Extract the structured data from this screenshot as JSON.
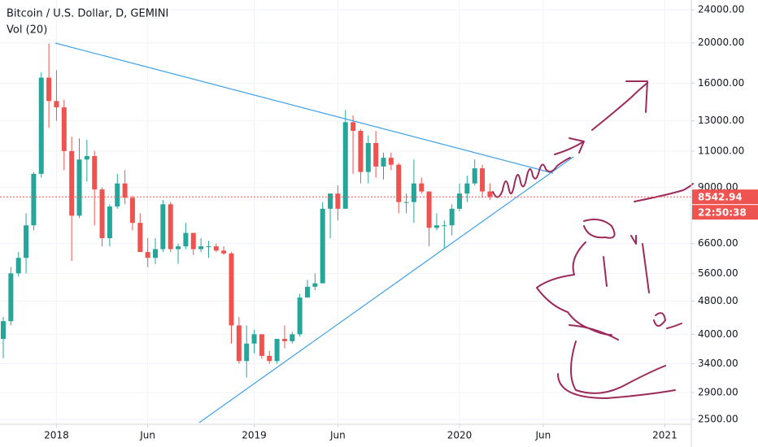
{
  "chart_data": {
    "type": "candlestick",
    "title": "Bitcoin / U.S. Dollar, D, GEMINI",
    "subtitle": "Vol (20)",
    "countdown": "22:50:38",
    "log_scale": true,
    "grid": true,
    "up_color": "#26a69a",
    "down_color": "#ef5350",
    "categories": [
      null,
      null,
      null,
      null,
      null,
      null,
      null,
      "2018",
      null,
      null,
      null,
      null,
      null,
      null,
      null,
      null,
      null,
      null,
      null,
      "Jun",
      null,
      null,
      null,
      null,
      null,
      null,
      null,
      null,
      null,
      null,
      null,
      null,
      null,
      "2019",
      null,
      null,
      null,
      null,
      null,
      null,
      null,
      null,
      null,
      null,
      "Jun",
      null,
      null,
      null,
      null,
      null,
      null,
      null,
      null,
      null,
      null,
      null,
      null,
      null,
      null,
      null,
      "2020",
      null,
      null,
      null,
      null,
      null,
      null,
      null,
      null,
      null,
      null,
      "Jun",
      null,
      null,
      null,
      null,
      null,
      null,
      null,
      null,
      null,
      null,
      null,
      null,
      null,
      null,
      null,
      "2021",
      null,
      null,
      null
    ],
    "open": [
      3900,
      4300,
      5600,
      6100,
      7300,
      9700,
      16500,
      14500,
      14000,
      11000,
      7700,
      10500,
      10700,
      8900,
      6800,
      8100,
      9200,
      8500,
      7400,
      6300,
      6100,
      6400,
      8200,
      6400,
      6500,
      7000,
      6400,
      6500,
      6500,
      6350,
      6250,
      4200,
      3450,
      3800,
      4000,
      3550,
      3450,
      3900,
      3850,
      4000,
      4900,
      5200,
      5300,
      8000,
      8700,
      8000,
      12900,
      12300,
      9800,
      11500,
      10100,
      10600,
      10200,
      8300,
      8300,
      9200,
      8800,
      7200,
      7300,
      7300,
      8000,
      8700,
      9200,
      10000,
      8800,
      null,
      null,
      null,
      null,
      null,
      null,
      null,
      null,
      null,
      null,
      null,
      null,
      null,
      null,
      null,
      null,
      null,
      null,
      null,
      null,
      null,
      null,
      null,
      null,
      null,
      null
    ],
    "high": [
      4400,
      5800,
      6300,
      7800,
      9800,
      17000,
      19900,
      17200,
      14600,
      11900,
      11800,
      11700,
      11000,
      9000,
      8200,
      9700,
      9900,
      8600,
      7800,
      6800,
      6800,
      8400,
      8300,
      6600,
      7400,
      7000,
      6800,
      6700,
      6600,
      6500,
      6300,
      4400,
      4200,
      4100,
      4000,
      3650,
      3900,
      4200,
      4050,
      5000,
      5400,
      5600,
      8300,
      8700,
      9100,
      13800,
      13400,
      12400,
      12000,
      12300,
      10900,
      10900,
      10300,
      8700,
      10500,
      9500,
      8800,
      7800,
      7500,
      8200,
      9200,
      9600,
      10500,
      10200,
      9200,
      null,
      null,
      null,
      null,
      null,
      null,
      null,
      null,
      null,
      null,
      null,
      null,
      null,
      null,
      null,
      null,
      null,
      null,
      null,
      null,
      null,
      null,
      null,
      null,
      null,
      null
    ],
    "low": [
      3500,
      4200,
      5500,
      5600,
      7100,
      9500,
      12500,
      13000,
      9900,
      6000,
      7600,
      9300,
      7300,
      6500,
      6500,
      8000,
      8200,
      7100,
      6300,
      5800,
      5900,
      6300,
      6300,
      5900,
      6400,
      6200,
      6300,
      6100,
      6300,
      6200,
      3800,
      3400,
      3150,
      3600,
      3500,
      3400,
      3400,
      3700,
      3800,
      3950,
      4900,
      5100,
      5300,
      6800,
      7500,
      8000,
      9700,
      9200,
      9200,
      9500,
      9400,
      9900,
      7800,
      7800,
      7400,
      8700,
      6500,
      7100,
      6400,
      6900,
      7900,
      8300,
      9100,
      8500,
      8400,
      null,
      null,
      null,
      null,
      null,
      null,
      null,
      null,
      null,
      null,
      null,
      null,
      null,
      null,
      null,
      null,
      null,
      null,
      null,
      null,
      null,
      null,
      null,
      null,
      null,
      null
    ],
    "close": [
      4300,
      5600,
      6100,
      7300,
      9700,
      16500,
      14500,
      14000,
      11000,
      7700,
      10500,
      10700,
      8900,
      6800,
      8100,
      9200,
      8500,
      7400,
      6300,
      6100,
      6400,
      8200,
      6400,
      6500,
      7000,
      6400,
      6500,
      6500,
      6350,
      6250,
      4200,
      3450,
      3800,
      4000,
      3550,
      3450,
      3900,
      3850,
      4000,
      4900,
      5200,
      5300,
      8000,
      8700,
      8000,
      12900,
      12300,
      9800,
      11500,
      10100,
      10600,
      10200,
      8300,
      8300,
      9200,
      8800,
      7200,
      7300,
      7300,
      8000,
      8700,
      9200,
      10000,
      8800,
      8542.94,
      null,
      null,
      null,
      null,
      null,
      null,
      null,
      null,
      null,
      null,
      null,
      null,
      null,
      null,
      null,
      null,
      null,
      null,
      null,
      null,
      null,
      null,
      null,
      null,
      null,
      null
    ],
    "ylim": [
      2434,
      25330
    ],
    "yticks": [
      {
        "value": 24000,
        "label": "24000.00"
      },
      {
        "value": 20000,
        "label": "20000.00"
      },
      {
        "value": 16000,
        "label": "16000.00"
      },
      {
        "value": 13000,
        "label": "13000.00"
      },
      {
        "value": 11000,
        "label": "11000.00"
      },
      {
        "value": 9000,
        "label": "9000.00"
      },
      {
        "value": 6600,
        "label": "6600.00"
      },
      {
        "value": 5600,
        "label": "5600.00"
      },
      {
        "value": 4800,
        "label": "4800.00"
      },
      {
        "value": 4000,
        "label": "4000.00"
      },
      {
        "value": 3400,
        "label": "3400.00"
      },
      {
        "value": 2900,
        "label": "2900.00"
      },
      {
        "value": 2500,
        "label": "2500.00"
      }
    ]
  }
}
